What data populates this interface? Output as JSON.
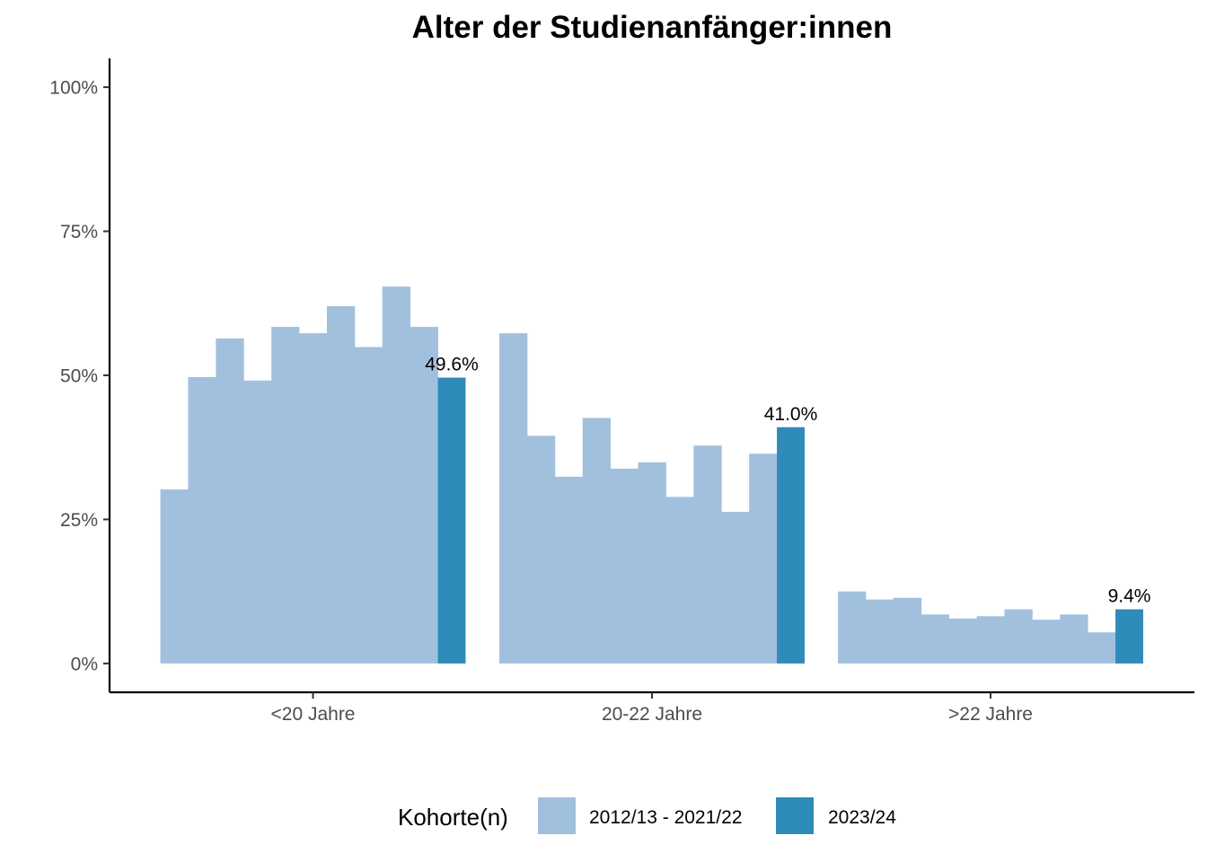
{
  "chart_data": {
    "type": "bar",
    "title": "Alter der Studienanfänger:innen",
    "categories": [
      "<20 Jahre",
      "20-22 Jahre",
      ">22 Jahre"
    ],
    "ylim": [
      -5,
      105
    ],
    "yticks": [
      0,
      25,
      50,
      75,
      100
    ],
    "ytick_labels": [
      "0%",
      "25%",
      "50%",
      "75%",
      "100%"
    ],
    "series": [
      {
        "name": "2012/13 - 2021/22",
        "color": "#a1c0dd",
        "values": [
          [
            30.2,
            49.7,
            56.4,
            49.1,
            58.4,
            57.3,
            62.0,
            54.9,
            65.4,
            58.4
          ],
          [
            57.3,
            39.5,
            32.4,
            42.6,
            33.8,
            34.9,
            28.9,
            37.8,
            26.3,
            36.4
          ],
          [
            12.5,
            11.1,
            11.4,
            8.5,
            7.8,
            8.2,
            9.4,
            7.6,
            8.5,
            5.4
          ]
        ]
      },
      {
        "name": "2023/24",
        "color": "#2e8bba",
        "values": [
          49.6,
          41.0,
          9.4
        ],
        "labels": [
          "49.6%",
          "41.0%",
          "9.4%"
        ]
      }
    ],
    "legend": {
      "title": "Kohorte(n)",
      "position": "bottom",
      "entries": [
        "2012/13 - 2021/22",
        "2023/24"
      ]
    },
    "grid": false
  }
}
